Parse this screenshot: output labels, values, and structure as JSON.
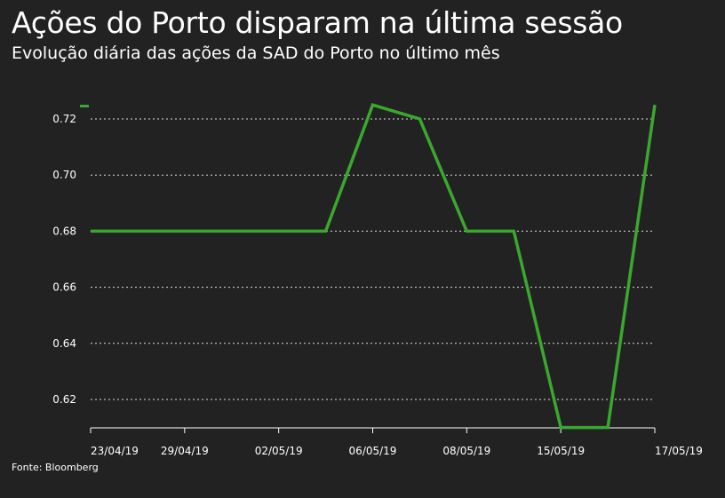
{
  "title": "Ações do Porto disparam na última sessão",
  "subtitle": "Evolução diária das ações da SAD do Porto no último mês",
  "source": "Fonte: Bloomberg",
  "colors": {
    "background": "#222222",
    "line": "#3aa82e",
    "text": "#ffffff",
    "grid": "#dddddd"
  },
  "chart_data": {
    "type": "line",
    "title": "Ações do Porto disparam na última sessão",
    "subtitle": "Evolução diária das ações da SAD do Porto no último mês",
    "xlabel": "",
    "ylabel": "",
    "x_tick_labels": [
      "23/04/19",
      "29/04/19",
      "02/05/19",
      "06/05/19",
      "08/05/19",
      "15/05/19",
      "17/05/19"
    ],
    "y_ticks": [
      "0.62",
      "0.64",
      "0.66",
      "0.68",
      "0.70",
      "0.72"
    ],
    "ylim": [
      0.609,
      0.725
    ],
    "grid": "horizontal-dotted",
    "legend": "top-left",
    "series": [
      {
        "values": [
          0.68,
          0.68,
          0.68,
          0.68,
          0.68,
          0.68,
          0.725,
          0.72,
          0.68,
          0.68,
          0.61,
          0.61,
          0.725
        ]
      }
    ]
  }
}
